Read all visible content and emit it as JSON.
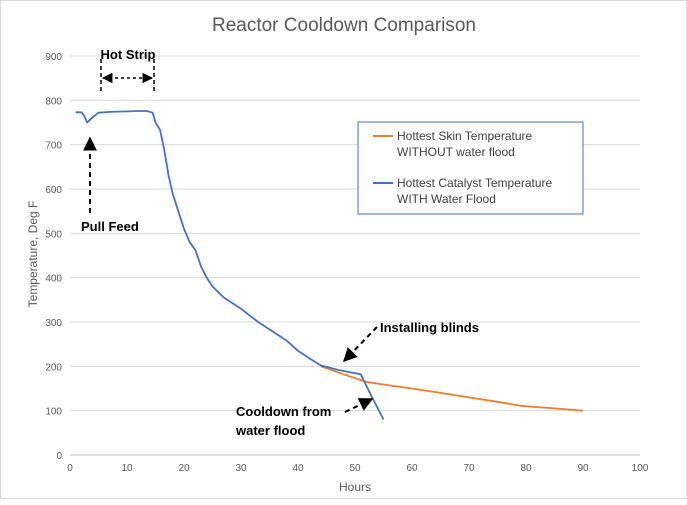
{
  "chart_data": {
    "type": "line",
    "title": "Reactor Cooldown Comparison",
    "xlabel": "Hours",
    "ylabel": "Temperature, Deg F",
    "xlim": [
      0,
      100
    ],
    "ylim": [
      0,
      900
    ],
    "x_ticks": [
      0,
      10,
      20,
      30,
      40,
      50,
      60,
      70,
      80,
      90,
      100
    ],
    "y_ticks": [
      0,
      100,
      200,
      300,
      400,
      500,
      600,
      700,
      800,
      900
    ],
    "grid": "horizontal",
    "legend_position": "right",
    "series": [
      {
        "name": "Hottest Skin Temperature WITHOUT water flood",
        "color": "#ED7D31",
        "points": [
          [
            44,
            200
          ],
          [
            48,
            182
          ],
          [
            52,
            165
          ],
          [
            56,
            157
          ],
          [
            60,
            150
          ],
          [
            65,
            140
          ],
          [
            70,
            130
          ],
          [
            75,
            120
          ],
          [
            79,
            111
          ],
          [
            85,
            105
          ],
          [
            90,
            100
          ]
        ]
      },
      {
        "name": "Hottest Catalyst Temperature WITH Water Flood",
        "color": "#4472C4",
        "points": [
          [
            1,
            773
          ],
          [
            2,
            773
          ],
          [
            2.5,
            765
          ],
          [
            3,
            750
          ],
          [
            4,
            762
          ],
          [
            5,
            772
          ],
          [
            7,
            774
          ],
          [
            10,
            775
          ],
          [
            12,
            776
          ],
          [
            13.5,
            776
          ],
          [
            14.5,
            772
          ],
          [
            15,
            750
          ],
          [
            15.8,
            733
          ],
          [
            16.5,
            690
          ],
          [
            17.3,
            630
          ],
          [
            18,
            590
          ],
          [
            19,
            550
          ],
          [
            20,
            510
          ],
          [
            21,
            480
          ],
          [
            22,
            462
          ],
          [
            23,
            425
          ],
          [
            24,
            400
          ],
          [
            25,
            380
          ],
          [
            27,
            355
          ],
          [
            30,
            330
          ],
          [
            33,
            300
          ],
          [
            36,
            275
          ],
          [
            38,
            258
          ],
          [
            40,
            235
          ],
          [
            42,
            218
          ],
          [
            44,
            202
          ],
          [
            47,
            192
          ],
          [
            49,
            187
          ],
          [
            51,
            182
          ],
          [
            53,
            130
          ],
          [
            55,
            80
          ]
        ]
      }
    ],
    "annotations": {
      "hot_strip": "Hot Strip",
      "pull_feed": "Pull Feed",
      "installing_blinds": "Installing blinds",
      "cooldown_line1": "Cooldown from",
      "cooldown_line2": "water flood"
    },
    "legend": {
      "skin_line1": "Hottest Skin Temperature",
      "skin_line2": "WITHOUT water flood",
      "cat_line1": "Hottest Catalyst Temperature",
      "cat_line2": "WITH Water Flood"
    }
  }
}
